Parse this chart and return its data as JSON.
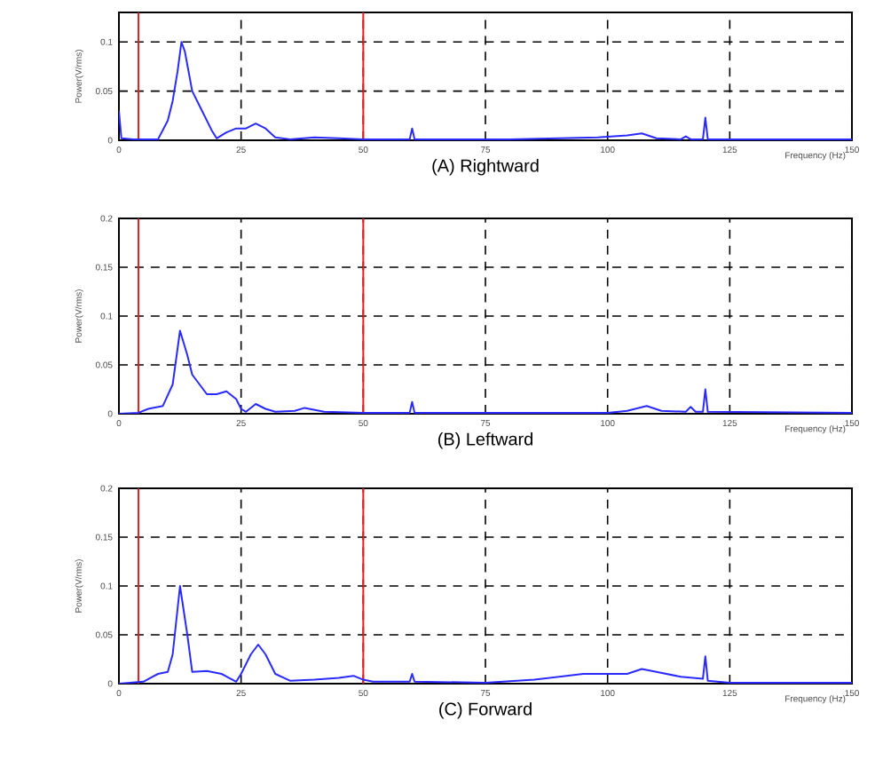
{
  "chart_data": [
    {
      "type": "line",
      "title": "(A) Rightward",
      "xlabel": "Frequency (Hz)",
      "ylabel": "Power(V/rms)",
      "xlim": [
        0,
        150
      ],
      "xticks": [
        0,
        25,
        50,
        75,
        100,
        125,
        150
      ],
      "ylim": [
        0,
        0.13
      ],
      "yticks": [
        0,
        0.05,
        0.1
      ],
      "grid": true,
      "ref_lines": [
        {
          "axis": "x",
          "value": 4,
          "color": "#e02020"
        },
        {
          "axis": "x",
          "value": 50,
          "color": "#e02020"
        }
      ],
      "series": [
        {
          "color": "#2a2aff",
          "x": [
            0,
            0.5,
            3,
            8,
            10,
            11,
            12,
            12.8,
            13.5,
            15,
            17,
            19,
            20,
            22,
            24,
            26,
            28,
            30,
            32,
            35,
            40,
            45,
            50,
            59.5,
            60,
            60.5,
            80,
            98,
            104,
            107,
            110,
            115,
            116,
            117,
            119.5,
            120,
            120.5,
            150
          ],
          "values": [
            0.03,
            0.002,
            0.001,
            0.001,
            0.02,
            0.04,
            0.07,
            0.1,
            0.09,
            0.05,
            0.03,
            0.01,
            0.002,
            0.008,
            0.012,
            0.012,
            0.017,
            0.012,
            0.003,
            0.001,
            0.003,
            0.002,
            0.001,
            0.001,
            0.012,
            0.001,
            0.001,
            0.003,
            0.005,
            0.007,
            0.002,
            0.001,
            0.004,
            0.001,
            0.001,
            0.023,
            0.001,
            0.001
          ]
        }
      ]
    },
    {
      "type": "line",
      "title": "(B) Leftward",
      "xlabel": "Frequency (Hz)",
      "ylabel": "Power(V/rms)",
      "xlim": [
        0,
        150
      ],
      "xticks": [
        0,
        25,
        50,
        75,
        100,
        125,
        150
      ],
      "ylim": [
        0,
        0.2
      ],
      "yticks": [
        0,
        0.05,
        0.1,
        0.15,
        0.2
      ],
      "grid": true,
      "ref_lines": [
        {
          "axis": "x",
          "value": 4,
          "color": "#e02020"
        },
        {
          "axis": "x",
          "value": 50,
          "color": "#e02020"
        }
      ],
      "series": [
        {
          "color": "#2a2aff",
          "x": [
            0,
            4,
            6,
            9,
            11,
            12.5,
            14,
            15,
            18,
            20,
            22,
            24,
            25,
            26,
            28,
            30,
            32,
            36,
            38,
            42,
            50,
            59.5,
            60,
            60.5,
            100,
            104,
            108,
            111,
            116,
            117,
            118,
            119.5,
            120,
            120.5,
            150
          ],
          "values": [
            0,
            0.001,
            0.005,
            0.008,
            0.03,
            0.085,
            0.06,
            0.04,
            0.02,
            0.02,
            0.023,
            0.015,
            0.005,
            0.002,
            0.01,
            0.005,
            0.002,
            0.003,
            0.006,
            0.002,
            0.001,
            0.001,
            0.012,
            0.001,
            0.001,
            0.003,
            0.008,
            0.003,
            0.002,
            0.007,
            0.002,
            0.002,
            0.025,
            0.002,
            0.001
          ]
        }
      ]
    },
    {
      "type": "line",
      "title": "(C) Forward",
      "xlabel": "Frequency (Hz)",
      "ylabel": "Power(V/rms)",
      "xlim": [
        0,
        150
      ],
      "xticks": [
        0,
        25,
        50,
        75,
        100,
        125,
        150
      ],
      "ylim": [
        0,
        0.2
      ],
      "yticks": [
        0,
        0.05,
        0.1,
        0.15,
        0.2
      ],
      "grid": true,
      "ref_lines": [
        {
          "axis": "x",
          "value": 4,
          "color": "#e02020"
        },
        {
          "axis": "x",
          "value": 50,
          "color": "#e02020"
        }
      ],
      "series": [
        {
          "color": "#2a2aff",
          "x": [
            0,
            5,
            8,
            10,
            11,
            12.5,
            14,
            15,
            18,
            21,
            24,
            25,
            27,
            28.5,
            30,
            32,
            35,
            40,
            45,
            48,
            50,
            52,
            59.5,
            60,
            60.5,
            75,
            85,
            95,
            100,
            104,
            107,
            110,
            115,
            119.5,
            120,
            120.5,
            125,
            150
          ],
          "values": [
            0,
            0.002,
            0.01,
            0.012,
            0.03,
            0.1,
            0.05,
            0.012,
            0.013,
            0.01,
            0.002,
            0.01,
            0.03,
            0.04,
            0.03,
            0.01,
            0.003,
            0.004,
            0.006,
            0.008,
            0.004,
            0.002,
            0.002,
            0.01,
            0.002,
            0.001,
            0.004,
            0.01,
            0.01,
            0.01,
            0.015,
            0.012,
            0.007,
            0.005,
            0.028,
            0.003,
            0.001,
            0.001
          ]
        }
      ]
    }
  ]
}
